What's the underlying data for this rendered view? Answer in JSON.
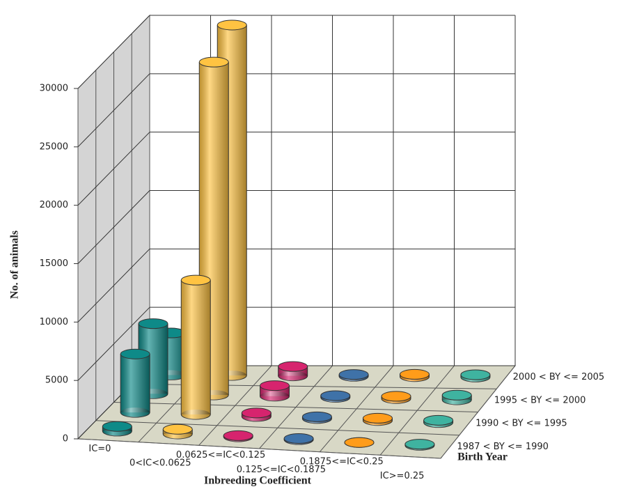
{
  "chart_data": {
    "type": "bar3d",
    "y_label": "No. of animals",
    "x_label": "Inbreeding Coefficient",
    "z_label": "Birth Year",
    "categories": [
      "IC=0",
      "0<IC<0.0625",
      "0.0625<=IC<0.125",
      "0.125<=IC<0.1875",
      "0.1875<=IC<0.25",
      "IC>=0.25"
    ],
    "colors": [
      "#0e8a88",
      "#ffc342",
      "#d6246e",
      "#3f72a8",
      "#ff9c1a",
      "#3fb3a0"
    ],
    "series": [
      {
        "name": "1987 < BY <= 1990",
        "values": [
          400,
          400,
          100,
          100,
          0,
          100
        ]
      },
      {
        "name": "1990 < BY <= 1995",
        "values": [
          5000,
          11500,
          300,
          150,
          200,
          200
        ]
      },
      {
        "name": "1995 < BY <= 2000",
        "values": [
          6000,
          28500,
          900,
          150,
          200,
          400
        ]
      },
      {
        "name": "2000 < BY <= 2005",
        "values": [
          3600,
          30000,
          800,
          150,
          200,
          200
        ]
      }
    ],
    "ylim": [
      0,
      30000
    ],
    "yticks": [
      0,
      5000,
      10000,
      15000,
      20000,
      25000,
      30000
    ],
    "grid": true
  }
}
